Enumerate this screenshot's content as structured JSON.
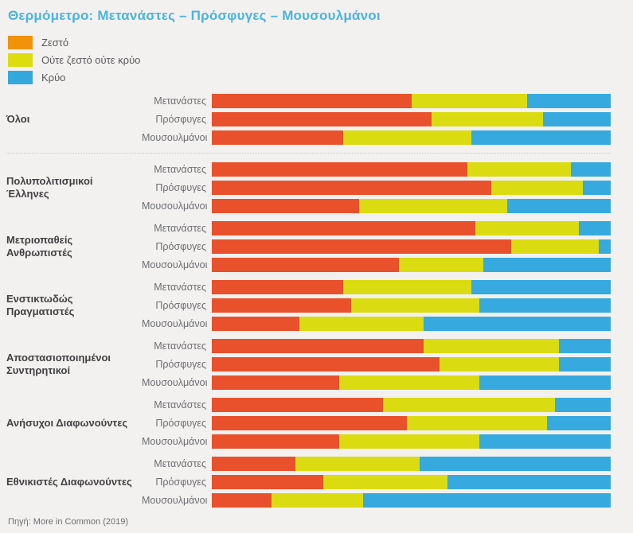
{
  "title": "Θερμόμετρο: Μετανάστες – Πρόσφυγες – Μουσουλμάνοι",
  "source": "Πηγή: More in Common (2019)",
  "legend": {
    "items": [
      {
        "label": "Ζεστό",
        "color": "#F0920A"
      },
      {
        "label": "Ούτε ζεστό ούτε κρύο",
        "color": "#DCDC0F"
      },
      {
        "label": "Κρύο",
        "color": "#33A8DC"
      }
    ]
  },
  "chart_data": {
    "type": "bar",
    "stacked": true,
    "orientation": "horizontal",
    "title": "Θερμόμετρο: Μετανάστες – Πρόσφυγες – Μουσουλμάνοι",
    "series_names": [
      "Ζεστό",
      "Ούτε ζεστό ούτε κρύο",
      "Κρύο"
    ],
    "unit": "percent",
    "xlim": [
      0,
      100
    ],
    "legend_position": "top-left",
    "bar_colors": [
      "#E8512B",
      "#DBDB12",
      "#36A9DF"
    ],
    "groups": [
      {
        "label": "Όλοι",
        "rows": [
          {
            "category": "Μετανάστες",
            "values": [
              50,
              29,
              21
            ]
          },
          {
            "category": "Πρόσφυγες",
            "values": [
              55,
              28,
              17
            ]
          },
          {
            "category": "Μουσουλμάνοι",
            "values": [
              33,
              32,
              35
            ]
          }
        ]
      },
      {
        "label": "Πολυπολιτισμικοί Έλληνες",
        "rows": [
          {
            "category": "Μετανάστες",
            "values": [
              64,
              26,
              10
            ]
          },
          {
            "category": "Πρόσφυγες",
            "values": [
              70,
              23,
              7
            ]
          },
          {
            "category": "Μουσουλμάνοι",
            "values": [
              37,
              37,
              26
            ]
          }
        ]
      },
      {
        "label": "Μετριοπαθείς Ανθρωπιστές",
        "rows": [
          {
            "category": "Μετανάστες",
            "values": [
              66,
              26,
              8
            ]
          },
          {
            "category": "Πρόσφυγες",
            "values": [
              75,
              22,
              3
            ]
          },
          {
            "category": "Μουσουλμάνοι",
            "values": [
              47,
              21,
              32
            ]
          }
        ]
      },
      {
        "label": "Ενστικτωδώς Πραγματιστές",
        "rows": [
          {
            "category": "Μετανάστες",
            "values": [
              33,
              32,
              35
            ]
          },
          {
            "category": "Πρόσφυγες",
            "values": [
              35,
              32,
              33
            ]
          },
          {
            "category": "Μουσουλμάνοι",
            "values": [
              22,
              31,
              47
            ]
          }
        ]
      },
      {
        "label": "Αποστασιοποιημένοι Συντηρητικοί",
        "rows": [
          {
            "category": "Μετανάστες",
            "values": [
              53,
              34,
              13
            ]
          },
          {
            "category": "Πρόσφυγες",
            "values": [
              57,
              30,
              13
            ]
          },
          {
            "category": "Μουσουλμάνοι",
            "values": [
              32,
              35,
              33
            ]
          }
        ]
      },
      {
        "label": "Ανήσυχοι Διαφωνούντες",
        "rows": [
          {
            "category": "Μετανάστες",
            "values": [
              43,
              43,
              14
            ]
          },
          {
            "category": "Πρόσφυγες",
            "values": [
              49,
              35,
              16
            ]
          },
          {
            "category": "Μουσουλμάνοι",
            "values": [
              32,
              35,
              33
            ]
          }
        ]
      },
      {
        "label": "Εθνικιστές Διαφωνούντες",
        "rows": [
          {
            "category": "Μετανάστες",
            "values": [
              21,
              31,
              48
            ]
          },
          {
            "category": "Πρόσφυγες",
            "values": [
              28,
              31,
              41
            ]
          },
          {
            "category": "Μουσουλμάνοι",
            "values": [
              15,
              23,
              62
            ]
          }
        ]
      }
    ]
  }
}
